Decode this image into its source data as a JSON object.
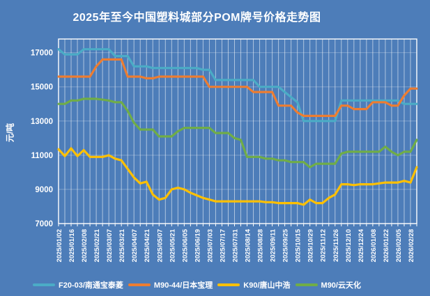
{
  "chart_data": {
    "type": "line",
    "title": "2025年至今中国塑料城部分POM牌号价格走势图",
    "ylabel": "元/吨",
    "xlabel": "",
    "ylim": [
      7000,
      17800
    ],
    "yticks": [
      7000,
      9000,
      11000,
      13000,
      15000,
      17000
    ],
    "grid": "vertical white gridlines at every data point, faint horizontal lines at y ticks",
    "legend_position": "bottom",
    "background_color": "#4d7db9",
    "text_color": "#ffffff",
    "n_points": 58,
    "label_every": 2,
    "x_tick_labels": [
      "2025/01/02",
      "2025/01/16",
      "2025/02/08",
      "2025/02/21",
      "2025/03/07",
      "2025/03/21",
      "2025/04/07",
      "2025/04/21",
      "2025/05/07",
      "2025/05/21",
      "2025/06/05",
      "2025/06/19",
      "2025/07/03",
      "2025/07/17",
      "2025/07/31",
      "2025/08/14",
      "2025/08/28",
      "2025/09/11",
      "2025/09/25",
      "2025/10/15",
      "2025/10/29",
      "2025/11/12",
      "2025/11/26",
      "2025/12/10",
      "2025/12/24",
      "2026/01/08",
      "2026/01/22",
      "2026/02/05",
      "2026/02/28"
    ],
    "series": [
      {
        "name": "F20-03/南通宝泰菱",
        "color": "#4BACC6",
        "values": [
          17200,
          16900,
          16900,
          16900,
          17200,
          17200,
          17200,
          17200,
          17200,
          16800,
          16800,
          16800,
          16200,
          16200,
          16200,
          16100,
          16100,
          16100,
          16100,
          16100,
          16100,
          16100,
          16100,
          16000,
          16000,
          15400,
          15400,
          15400,
          15400,
          15400,
          15400,
          15400,
          15000,
          15000,
          15000,
          15000,
          14700,
          14400,
          14100,
          13000,
          13000,
          13000,
          13000,
          13000,
          13000,
          14200,
          14200,
          14200,
          14200,
          14200,
          14200,
          14200,
          14200,
          14200,
          14200,
          14000,
          14000,
          14000
        ]
      },
      {
        "name": "M90-44/日本宝理",
        "color": "#ED7D31",
        "values": [
          15600,
          15600,
          15600,
          15600,
          15600,
          15600,
          16200,
          16600,
          16600,
          16600,
          16600,
          15600,
          15600,
          15600,
          15500,
          15500,
          15600,
          15600,
          15600,
          15600,
          15600,
          15600,
          15600,
          15600,
          15000,
          15000,
          15000,
          15000,
          15000,
          15000,
          15000,
          14700,
          14700,
          14700,
          14700,
          13900,
          13900,
          13900,
          13500,
          13300,
          13300,
          13300,
          13300,
          13300,
          13300,
          13900,
          13900,
          13700,
          13700,
          13700,
          14100,
          14100,
          14100,
          13900,
          13900,
          14500,
          14900,
          14900
        ]
      },
      {
        "name": "K90/唐山中浩",
        "color": "#FFC000",
        "values": [
          11350,
          10950,
          11400,
          10950,
          11300,
          10900,
          10900,
          10900,
          11000,
          10800,
          10700,
          10200,
          9700,
          9350,
          9450,
          8700,
          8400,
          8500,
          9000,
          9100,
          9000,
          8800,
          8650,
          8500,
          8400,
          8300,
          8300,
          8300,
          8300,
          8300,
          8300,
          8300,
          8300,
          8250,
          8250,
          8200,
          8200,
          8200,
          8200,
          8100,
          8400,
          8200,
          8200,
          8500,
          8700,
          9300,
          9300,
          9250,
          9300,
          9300,
          9300,
          9350,
          9400,
          9400,
          9400,
          9500,
          9400,
          10300
        ]
      },
      {
        "name": "M90/云天化",
        "color": "#70AD47",
        "values": [
          14000,
          14000,
          14200,
          14200,
          14300,
          14300,
          14300,
          14250,
          14200,
          14100,
          14100,
          13600,
          12900,
          12500,
          12500,
          12500,
          12100,
          12100,
          12100,
          12400,
          12600,
          12600,
          12600,
          12600,
          12600,
          12300,
          12300,
          12300,
          12000,
          11900,
          10900,
          10900,
          10900,
          10800,
          10800,
          10700,
          10700,
          10600,
          10600,
          10600,
          10300,
          10500,
          10500,
          10500,
          10500,
          11100,
          11200,
          11200,
          11200,
          11200,
          11200,
          11200,
          11500,
          11200,
          11000,
          11200,
          11200,
          11900
        ]
      }
    ]
  }
}
